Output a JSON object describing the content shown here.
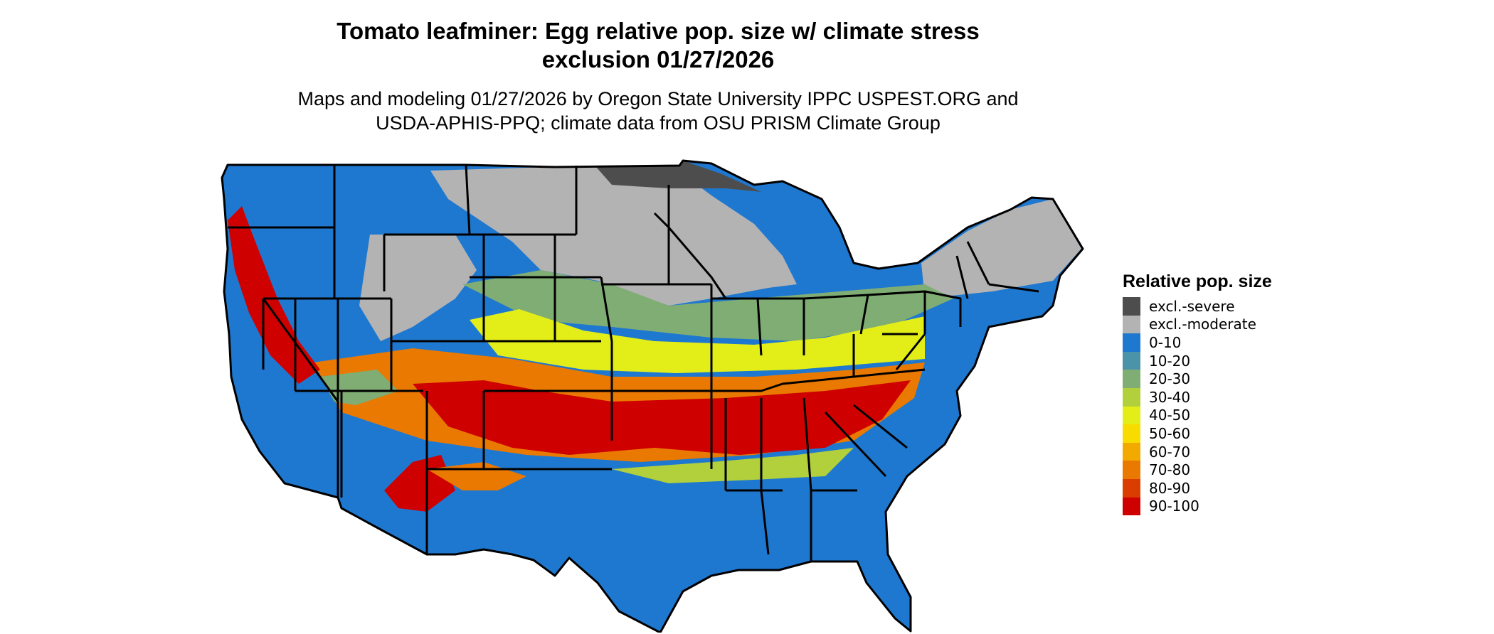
{
  "title_line1": "Tomato leafminer: Egg relative pop. size w/ climate stress",
  "title_line2": "exclusion 01/27/2026",
  "subtitle_line1": "Maps and modeling 01/27/2026 by Oregon State University IPPC USPEST.ORG and",
  "subtitle_line2": "USDA-APHIS-PPQ; climate data from OSU PRISM Climate Group",
  "legend": {
    "title": "Relative pop. size",
    "items": [
      {
        "label": "excl.-severe",
        "color": "#4d4d4d"
      },
      {
        "label": "excl.-moderate",
        "color": "#b3b3b3"
      },
      {
        "label": "0-10",
        "color": "#1f78d0"
      },
      {
        "label": "10-20",
        "color": "#4b93a8"
      },
      {
        "label": "20-30",
        "color": "#80ad74"
      },
      {
        "label": "30-40",
        "color": "#b2cf3c"
      },
      {
        "label": "40-50",
        "color": "#e3ee18"
      },
      {
        "label": "50-60",
        "color": "#f8dc00"
      },
      {
        "label": "60-70",
        "color": "#f2a900"
      },
      {
        "label": "70-80",
        "color": "#e97900"
      },
      {
        "label": "80-90",
        "color": "#db3d00"
      },
      {
        "label": "90-100",
        "color": "#cf0000"
      }
    ]
  }
}
